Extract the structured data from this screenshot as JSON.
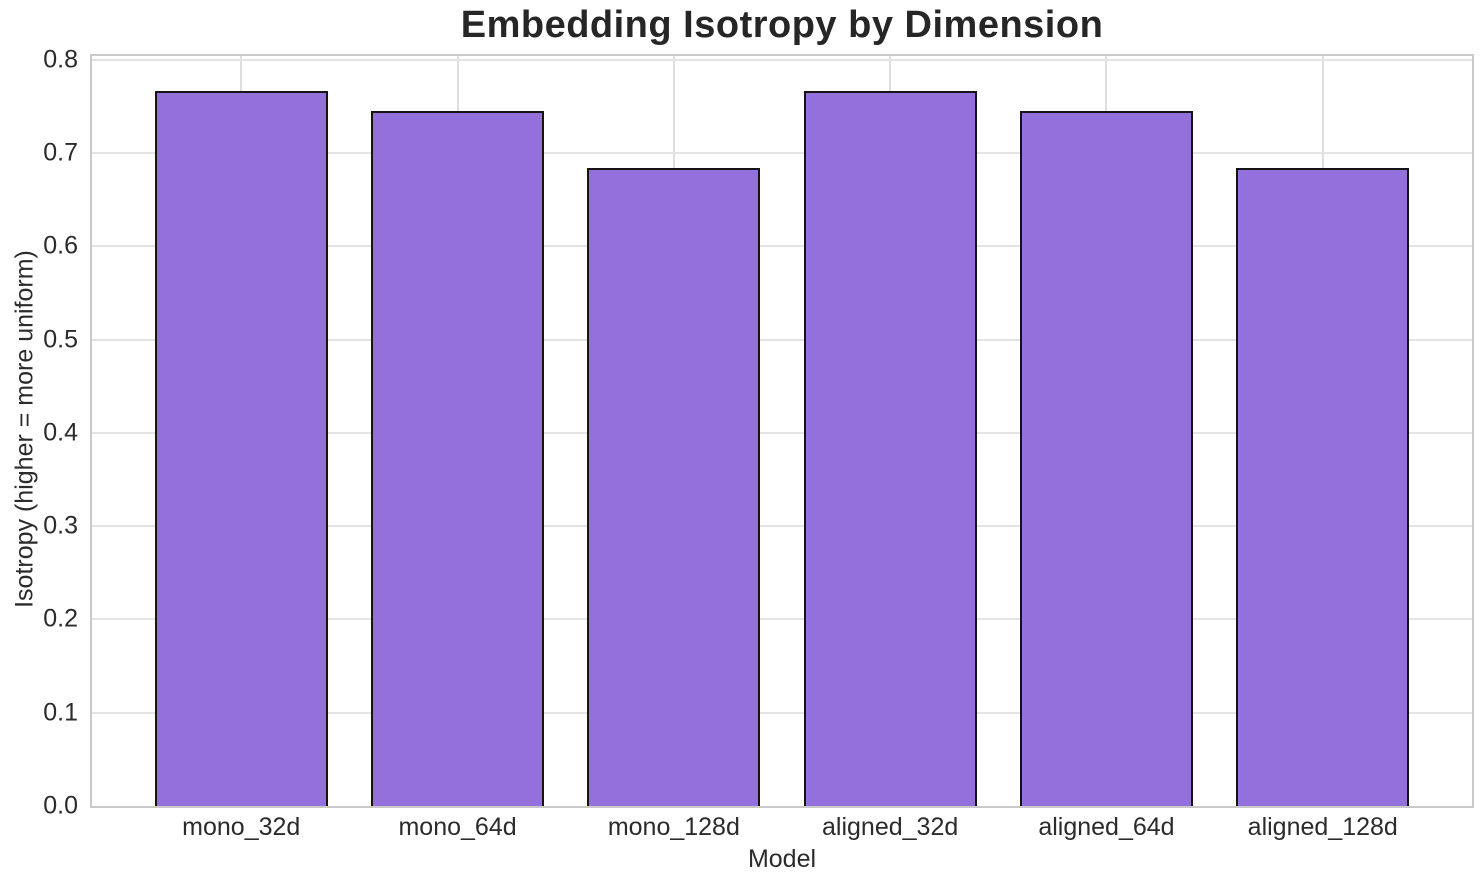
{
  "chart_data": {
    "type": "bar",
    "title": "Embedding Isotropy by Dimension",
    "xlabel": "Model",
    "ylabel": "Isotropy (higher = more uniform)",
    "categories": [
      "mono_32d",
      "mono_64d",
      "mono_128d",
      "aligned_32d",
      "aligned_64d",
      "aligned_128d"
    ],
    "values": [
      0.766,
      0.745,
      0.684,
      0.766,
      0.745,
      0.684
    ],
    "ylim": [
      0,
      0.804
    ],
    "yticks": [
      0.0,
      0.1,
      0.2,
      0.3,
      0.4,
      0.5,
      0.6,
      0.7,
      0.8
    ],
    "ytick_labels": [
      "0.0",
      "0.1",
      "0.2",
      "0.3",
      "0.4",
      "0.5",
      "0.6",
      "0.7",
      "0.8"
    ],
    "bar_width_fraction": 0.8,
    "grid": true,
    "legend": "none",
    "colors": {
      "bar_fill": "#9370DB",
      "bar_edge": "#141414",
      "grid_line": "#e4e4e4",
      "spine": "#c9c9c9",
      "text": "#262626",
      "background": "#ffffff"
    }
  }
}
